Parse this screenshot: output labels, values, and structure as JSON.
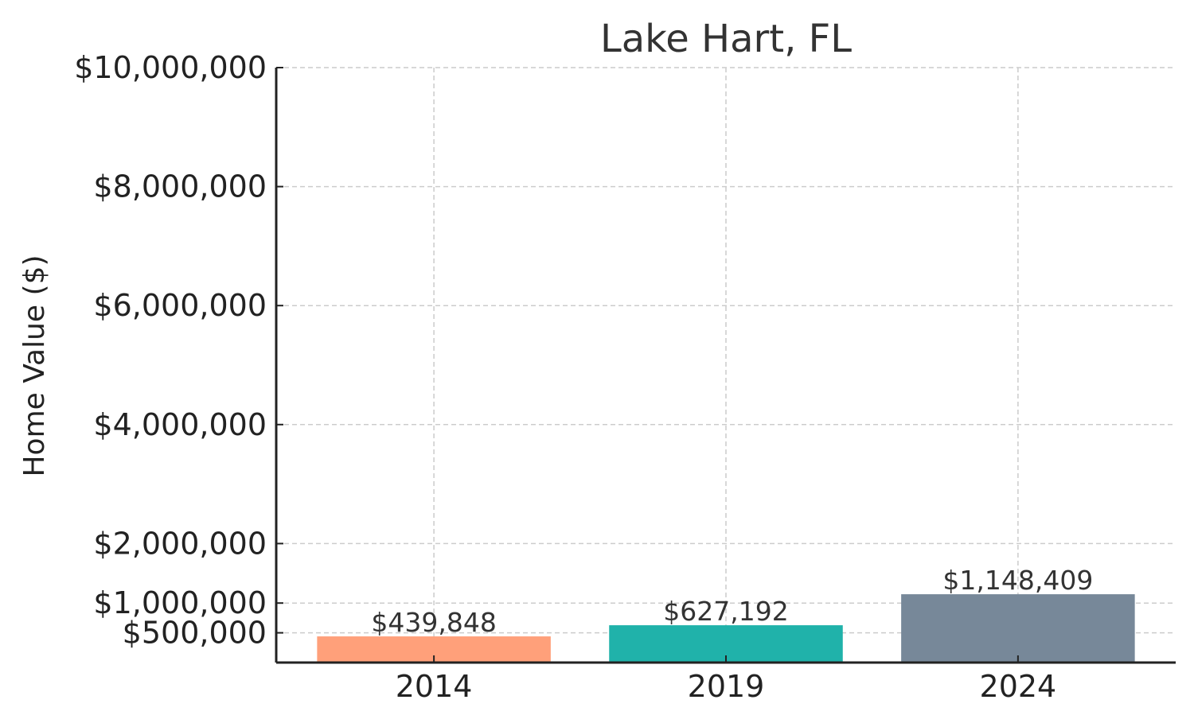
{
  "chart_data": {
    "type": "bar",
    "title": "Lake Hart, FL",
    "xlabel": "",
    "ylabel": "Home Value ($)",
    "categories": [
      "2014",
      "2019",
      "2024"
    ],
    "values": [
      439848,
      627192,
      1148409
    ],
    "value_labels": [
      "$439,848",
      "$627,192",
      "$1,148,409"
    ],
    "colors": [
      "#FFA07A",
      "#20B2AA",
      "#778899"
    ],
    "ylim": [
      0,
      10000000
    ],
    "yticks": [
      500000,
      1000000,
      2000000,
      4000000,
      6000000,
      8000000,
      10000000
    ],
    "ytick_labels": [
      "$500,000",
      "$1,000,000",
      "$2,000,000",
      "$4,000,000",
      "$6,000,000",
      "$8,000,000",
      "$10,000,000"
    ],
    "grid": true,
    "grid_style": "dashed"
  }
}
